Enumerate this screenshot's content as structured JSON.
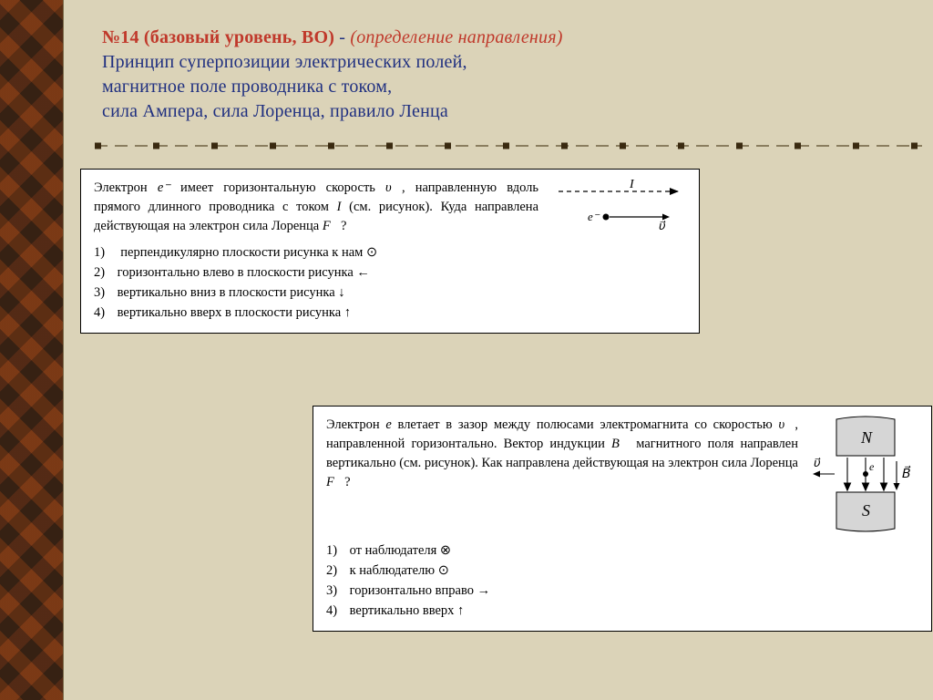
{
  "colors": {
    "page_bg": "#dbd3b8",
    "title_red": "#c0392b",
    "title_blue": "#203080",
    "card_bg": "#ffffff",
    "card_border": "#000000"
  },
  "heading": {
    "number": "№14 (базовый уровень, ВО)",
    "dash": " - ",
    "meta": "(определение направления)",
    "lines": [
      "Принцип суперпозиции электрических полей,",
      "магнитное поле проводника с током,",
      "сила Ампера, сила Лоренца, правило Ленца"
    ]
  },
  "divider": {
    "nodes": 15
  },
  "problem1": {
    "text_html": "Электрон <i>e⁻</i> имеет горизонтальную скорость <i>υ⃗</i>, направленную вдоль прямого длинного проводника с током <i>I</i> (см. рисунок). Куда направлена действующая на электрон сила Лоренца <i>F⃗</i>?",
    "options": [
      "перпендикулярно плоскости рисунка к нам ⊙",
      "горизонтально влево в плоскости рисунка ←",
      "вертикально вниз в плоскости рисунка ↓",
      "вертикально вверх в плоскости рисунка ↑"
    ],
    "figure": {
      "I_label": "I",
      "e_label": "e⁻",
      "v_label": "υ⃗"
    }
  },
  "problem2": {
    "text_html": "Электрон <i>e</i> влетает в зазор между полюсами электромагнита со скоростью <i>υ⃗</i>, направленной горизонтально. Вектор индукции <i>B⃗</i> магнитного поля направлен вертикально (см. рисунок). Как направлена действующая на электрон сила Лоренца <i>F⃗</i>?",
    "options": [
      "от наблюдателя ⊗",
      "к наблюдателю ⊙",
      "горизонтально вправо →",
      "вертикально вверх ↑"
    ],
    "figure": {
      "N_label": "N",
      "S_label": "S",
      "v_label": "υ⃗",
      "e_label": "e",
      "B_label": "B⃗"
    }
  }
}
